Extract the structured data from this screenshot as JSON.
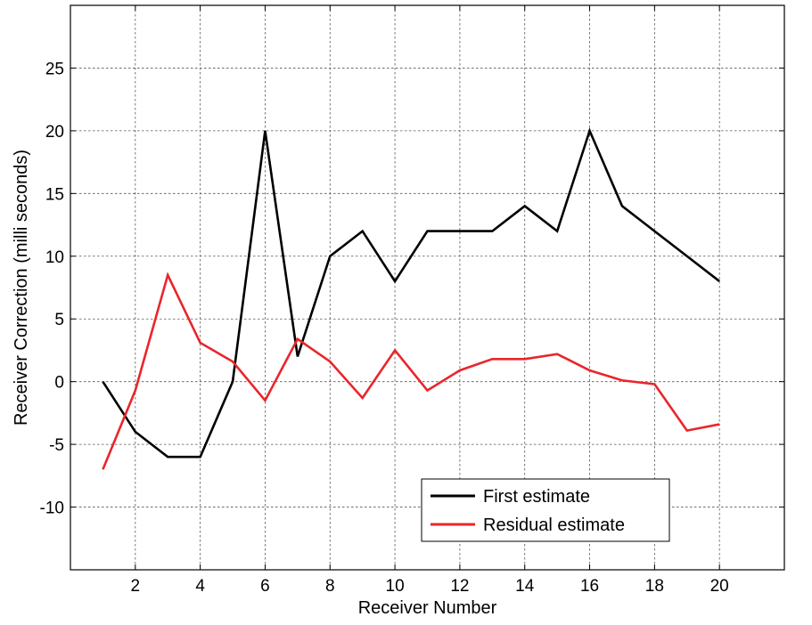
{
  "chart_data": {
    "type": "line",
    "title": "",
    "xlabel": "Receiver Number",
    "ylabel": "Receiver Correction (milli seconds)",
    "xlim": [
      0,
      22
    ],
    "ylim": [
      -15,
      30
    ],
    "xticks": [
      2,
      4,
      6,
      8,
      10,
      12,
      14,
      16,
      18,
      20
    ],
    "yticks": [
      -10,
      -5,
      0,
      5,
      10,
      15,
      20,
      25
    ],
    "grid": true,
    "legend_position": "bottom-center",
    "x": [
      1,
      2,
      3,
      4,
      5,
      6,
      7,
      8,
      9,
      10,
      11,
      12,
      13,
      14,
      15,
      16,
      17,
      18,
      19,
      20
    ],
    "series": [
      {
        "name": "First estimate",
        "color": "#000000",
        "values": [
          0,
          -4,
          -6,
          -6,
          0,
          20,
          2,
          10,
          12,
          8,
          12,
          12,
          12,
          14,
          12,
          20,
          14,
          12,
          10,
          8
        ]
      },
      {
        "name": "Residual estimate",
        "color": "#e8262b",
        "values": [
          -7,
          -0.7,
          8.5,
          3.1,
          1.6,
          -1.5,
          3.4,
          1.6,
          -1.3,
          2.5,
          -0.7,
          0.9,
          1.8,
          1.8,
          2.2,
          0.9,
          0.1,
          -0.2,
          -3.9,
          -3.4
        ]
      }
    ]
  }
}
